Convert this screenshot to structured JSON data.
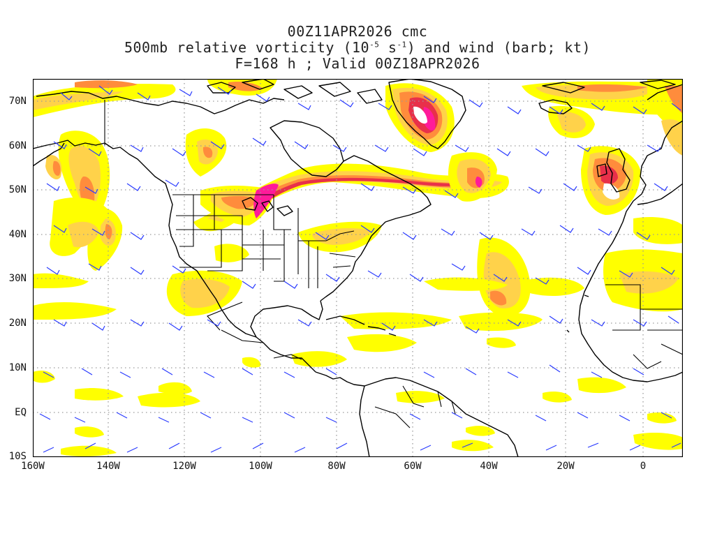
{
  "title": {
    "line1": "00Z11APR2026 cmc",
    "line2_a": "500mb relative vorticity (10",
    "line2_exp1": "-5",
    "line2_b": " s",
    "line2_exp2": "-1",
    "line2_c": ") and wind (barb; kt)",
    "line3": "F=168 h ; Valid 00Z18APR2026"
  },
  "lat_labels": [
    "70N",
    "60N",
    "50N",
    "40N",
    "30N",
    "20N",
    "10N",
    "EQ",
    "10S"
  ],
  "lon_labels": [
    "160W",
    "140W",
    "120W",
    "100W",
    "80W",
    "60W",
    "40W",
    "20W",
    "0"
  ],
  "colors": {
    "shade_low": "#ffff00",
    "shade_mid": "#ffd24a",
    "shade_high": "#ff8c3c",
    "shade_max": "#e8304a",
    "shade_peak": "#ff1a9a",
    "barb": "#2a3bff",
    "coast": "#000000",
    "grid": "#9a9a9a"
  }
}
